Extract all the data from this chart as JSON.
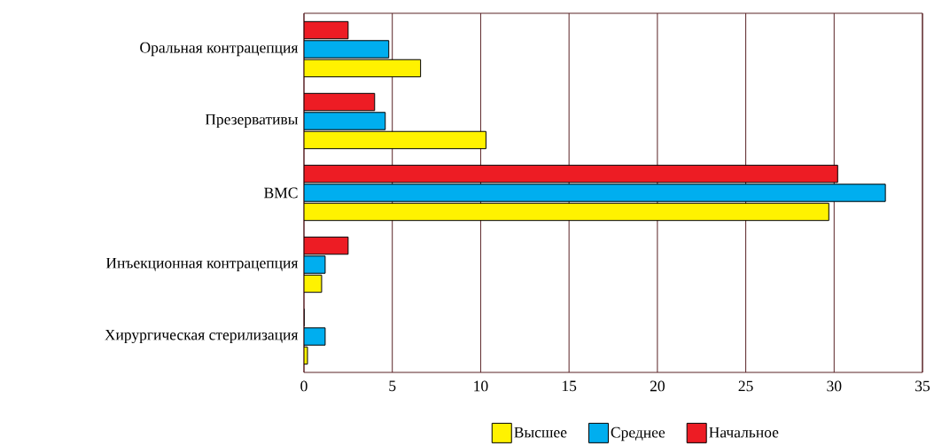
{
  "chart_data": {
    "type": "bar",
    "orientation": "horizontal",
    "categories": [
      "Оральная контрацепция",
      "Презервативы",
      "ВМС",
      "Инъекционная контрацепция",
      "Хирургическая стерилизация"
    ],
    "series": [
      {
        "name": "Высшее",
        "color": "#fff200",
        "values": [
          6.6,
          10.3,
          29.7,
          1.0,
          0.2
        ]
      },
      {
        "name": "Среднее",
        "color": "#00aeef",
        "values": [
          4.8,
          4.6,
          32.9,
          1.2,
          1.2
        ]
      },
      {
        "name": "Начальное",
        "color": "#ed1c24",
        "values": [
          2.5,
          4.0,
          30.2,
          2.5,
          0
        ]
      }
    ],
    "xlim": [
      0,
      35
    ],
    "xticks": [
      0,
      5,
      10,
      15,
      20,
      25,
      30,
      35
    ],
    "grid": "x",
    "legend": "bottom"
  }
}
